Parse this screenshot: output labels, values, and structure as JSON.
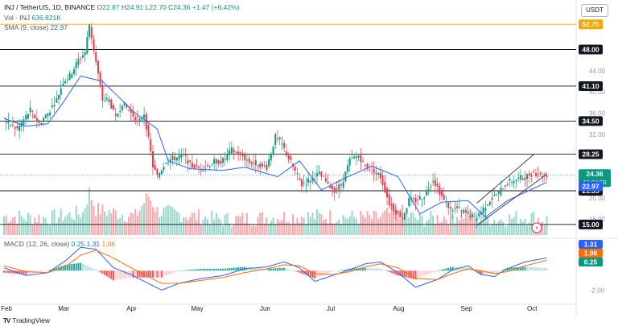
{
  "header": {
    "symbol": "INJ / TetherUS, 1D, BINANCE",
    "open_label": "O",
    "open": "22.87",
    "high_label": "H",
    "high": "24.91",
    "low_label": "L",
    "low": "22.70",
    "close_label": "C",
    "close": "24.36",
    "change": "+1.47 (+6.42%)",
    "vol_label": "Vol · INJ",
    "vol": "636.821K",
    "sma_label": "SMA (9, close)",
    "sma": "22.97",
    "macd_label": "MACD (12, 26, close)",
    "macd_v1": "0.25",
    "macd_v2": "1.31",
    "macd_v3": "1.06"
  },
  "currency": "USDT",
  "footer": {
    "brand": "TradingView"
  },
  "colors": {
    "up": "#089981",
    "down": "#f23645",
    "sma": "#2962ff",
    "macd": "#2962ff",
    "signal": "#ff6d00",
    "dark_label": "#131722",
    "top_label": "#f7a600"
  },
  "chart_data": {
    "type": "candlestick",
    "symbol": "INJ / TetherUS",
    "interval": "1D",
    "exchange": "BINANCE",
    "price_ylim": [
      13,
      54
    ],
    "x_axis_months": [
      "Feb",
      "Mar",
      "Apr",
      "May",
      "Jun",
      "Jul",
      "Aug",
      "Sep",
      "Oct"
    ],
    "month_start_day": [
      0,
      28,
      59,
      89,
      120,
      150,
      181,
      212,
      242
    ],
    "price_ticks": [
      "44.00",
      "40.00",
      "36.00",
      "32.00",
      "20.00",
      "16.00"
    ],
    "hlines": [
      {
        "value": 52.75,
        "label": "52.75",
        "style": "orange"
      },
      {
        "value": 48.0,
        "label": "48.00",
        "style": "dark"
      },
      {
        "value": 41.1,
        "label": "41.10",
        "style": "dark"
      },
      {
        "value": 34.5,
        "label": "34.50",
        "style": "dark"
      },
      {
        "value": 28.25,
        "label": "28.25",
        "style": "dark"
      },
      {
        "value": 21.35,
        "label": "21.35",
        "style": "dark"
      },
      {
        "value": 15.0,
        "label": "15.00",
        "style": "dark"
      }
    ],
    "price_labels": [
      {
        "value": 24.36,
        "label": "24.36",
        "sublabel": "15:24:50",
        "style": "up"
      },
      {
        "value": 22.97,
        "label": "22.97",
        "style": "sma"
      }
    ],
    "channel": {
      "lower": [
        [
          216,
          14.8
        ],
        [
          248,
          24.5
        ]
      ],
      "upper": [
        [
          216,
          19.0
        ],
        [
          242,
          28.2
        ]
      ]
    },
    "macd_ticks": [
      "-2.00"
    ],
    "macd_ylim": [
      -3.2,
      3.0
    ],
    "macd_labels": [
      {
        "value": 1.31,
        "label": "1.31",
        "style": "macd"
      },
      {
        "value": 1.06,
        "label": "1.06",
        "style": "signal"
      },
      {
        "value": 0.25,
        "label": "0.25",
        "style": "up"
      }
    ],
    "series": [
      {
        "name": "SMA (9, close)",
        "values": [
          [
            0,
            35
          ],
          [
            10,
            33.5
          ],
          [
            20,
            34
          ],
          [
            27,
            38
          ],
          [
            35,
            43
          ],
          [
            45,
            42
          ],
          [
            60,
            36
          ],
          [
            70,
            33
          ],
          [
            75,
            27
          ],
          [
            85,
            25.5
          ],
          [
            100,
            25.2
          ],
          [
            110,
            25.8
          ],
          [
            125,
            24
          ],
          [
            135,
            27
          ],
          [
            145,
            21.5
          ],
          [
            155,
            23.6
          ],
          [
            168,
            26
          ],
          [
            180,
            24
          ],
          [
            190,
            17
          ],
          [
            200,
            19.2
          ],
          [
            212,
            19.5
          ],
          [
            220,
            16.4
          ],
          [
            230,
            19.5
          ],
          [
            248,
            22.97
          ]
        ]
      },
      {
        "name": "MACD",
        "values": [
          [
            0,
            0.3
          ],
          [
            10,
            -0.5
          ],
          [
            20,
            -0.2
          ],
          [
            28,
            1
          ],
          [
            35,
            2.4
          ],
          [
            42,
            2.2
          ],
          [
            50,
            0.3
          ],
          [
            58,
            -0.4
          ],
          [
            65,
            -1.2
          ],
          [
            72,
            -2.0
          ],
          [
            80,
            -1.3
          ],
          [
            90,
            -0.8
          ],
          [
            100,
            -0.5
          ],
          [
            110,
            0.2
          ],
          [
            120,
            0.4
          ],
          [
            128,
            0.9
          ],
          [
            135,
            0.3
          ],
          [
            142,
            -1.1
          ],
          [
            150,
            -0.5
          ],
          [
            158,
            0.1
          ],
          [
            165,
            0.7
          ],
          [
            172,
            0.9
          ],
          [
            180,
            -0.2
          ],
          [
            188,
            -1.7
          ],
          [
            198,
            -0.9
          ],
          [
            205,
            0.1
          ],
          [
            212,
            0.5
          ],
          [
            218,
            -0.4
          ],
          [
            224,
            -0.6
          ],
          [
            230,
            0.2
          ],
          [
            238,
            0.9
          ],
          [
            248,
            1.31
          ]
        ]
      },
      {
        "name": "Signal",
        "values": [
          [
            0,
            0.5
          ],
          [
            10,
            -0.1
          ],
          [
            20,
            -0.2
          ],
          [
            28,
            0.4
          ],
          [
            35,
            1.6
          ],
          [
            42,
            2.1
          ],
          [
            50,
            1.3
          ],
          [
            58,
            0.3
          ],
          [
            65,
            -0.5
          ],
          [
            72,
            -1.3
          ],
          [
            80,
            -1.3
          ],
          [
            90,
            -1.0
          ],
          [
            100,
            -0.7
          ],
          [
            110,
            -0.2
          ],
          [
            120,
            0.2
          ],
          [
            128,
            0.6
          ],
          [
            135,
            0.5
          ],
          [
            142,
            -0.3
          ],
          [
            150,
            -0.4
          ],
          [
            158,
            -0.1
          ],
          [
            165,
            0.4
          ],
          [
            172,
            0.7
          ],
          [
            180,
            0.3
          ],
          [
            188,
            -0.8
          ],
          [
            198,
            -0.9
          ],
          [
            205,
            -0.3
          ],
          [
            212,
            0.2
          ],
          [
            218,
            0
          ],
          [
            224,
            -0.3
          ],
          [
            230,
            -0.1
          ],
          [
            238,
            0.5
          ],
          [
            248,
            1.06
          ]
        ]
      }
    ],
    "price_anchors": [
      [
        0,
        34.5
      ],
      [
        6,
        33
      ],
      [
        12,
        36.5
      ],
      [
        16,
        34
      ],
      [
        20,
        36
      ],
      [
        24,
        38.5
      ],
      [
        27,
        42
      ],
      [
        30,
        43
      ],
      [
        34,
        46
      ],
      [
        37,
        47.5
      ],
      [
        39,
        52.75
      ],
      [
        41,
        48
      ],
      [
        45,
        38.5
      ],
      [
        48,
        38.5
      ],
      [
        51,
        35
      ],
      [
        54,
        38
      ],
      [
        58,
        36
      ],
      [
        62,
        34.5
      ],
      [
        64,
        36
      ],
      [
        66,
        31
      ],
      [
        68,
        26
      ],
      [
        70,
        24
      ],
      [
        74,
        27
      ],
      [
        78,
        27.5
      ],
      [
        82,
        28
      ],
      [
        86,
        26
      ],
      [
        90,
        25.5
      ],
      [
        96,
        26.8
      ],
      [
        100,
        27
      ],
      [
        104,
        29
      ],
      [
        108,
        28.2
      ],
      [
        112,
        26.8
      ],
      [
        116,
        26.5
      ],
      [
        120,
        25.8
      ],
      [
        124,
        31.5
      ],
      [
        127,
        30
      ],
      [
        130,
        27.5
      ],
      [
        133,
        25
      ],
      [
        136,
        22.5
      ],
      [
        140,
        23.5
      ],
      [
        144,
        24.5
      ],
      [
        148,
        22.5
      ],
      [
        151,
        21.5
      ],
      [
        154,
        22.4
      ],
      [
        158,
        27
      ],
      [
        162,
        28
      ],
      [
        165,
        26
      ],
      [
        168,
        25.5
      ],
      [
        172,
        24
      ],
      [
        176,
        19
      ],
      [
        179,
        17.5
      ],
      [
        182,
        16.3
      ],
      [
        185,
        19.5
      ],
      [
        188,
        19.5
      ],
      [
        192,
        20.5
      ],
      [
        196,
        23.5
      ],
      [
        198,
        22
      ],
      [
        201,
        19.5
      ],
      [
        204,
        18
      ],
      [
        207,
        18
      ],
      [
        209,
        17.5
      ],
      [
        212,
        17
      ],
      [
        215,
        16.2
      ],
      [
        218,
        17.5
      ],
      [
        222,
        19.6
      ],
      [
        226,
        21
      ],
      [
        230,
        23
      ],
      [
        234,
        23.5
      ],
      [
        238,
        24
      ],
      [
        242,
        24.8
      ],
      [
        246,
        24.36
      ]
    ],
    "volume_profile": [
      [
        0,
        0.3
      ],
      [
        20,
        0.25
      ],
      [
        36,
        0.4
      ],
      [
        39,
        1.0
      ],
      [
        42,
        0.5
      ],
      [
        60,
        0.3
      ],
      [
        66,
        0.9
      ],
      [
        70,
        0.45
      ],
      [
        100,
        0.2
      ],
      [
        130,
        0.3
      ],
      [
        150,
        0.3
      ],
      [
        170,
        0.25
      ],
      [
        180,
        0.45
      ],
      [
        190,
        0.2
      ],
      [
        210,
        0.35
      ],
      [
        225,
        0.2
      ],
      [
        240,
        0.3
      ],
      [
        247,
        0.2
      ]
    ],
    "num_days": 248
  }
}
